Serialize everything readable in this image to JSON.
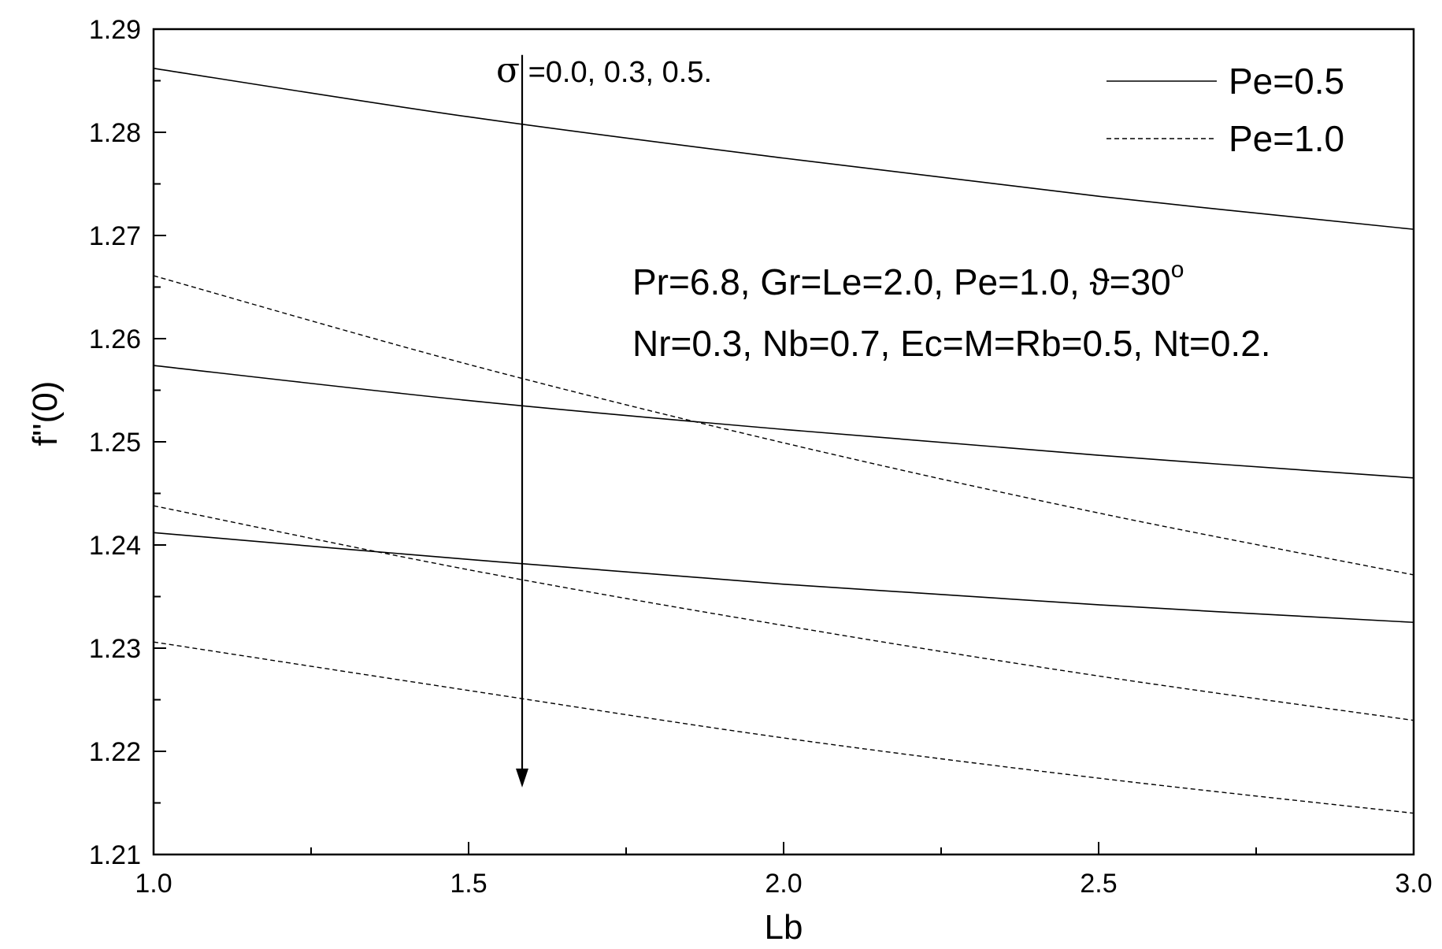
{
  "chart_data": {
    "type": "line",
    "xlabel": "Lb",
    "ylabel": "f''(0)",
    "xlim": [
      1.0,
      3.0
    ],
    "ylim": [
      1.21,
      1.29
    ],
    "x_ticks": [
      "1.0",
      "1.5",
      "2.0",
      "2.5",
      "3.0"
    ],
    "y_ticks": [
      "1.21",
      "1.22",
      "1.23",
      "1.24",
      "1.25",
      "1.26",
      "1.27",
      "1.28",
      "1.29"
    ],
    "legend": {
      "placement": "top-right",
      "entries": [
        {
          "label": "Pe=0.5",
          "style": "solid"
        },
        {
          "label": "Pe=1.0",
          "style": "dashed"
        }
      ]
    },
    "annotations": {
      "sigma_symbol": "σ",
      "sigma_values": " =0.0, 0.3, 0.5.",
      "params_line1": "Pr=6.8, Gr=Le=2.0, Pe=1.0, ϑ=30",
      "params_line1_sup": "o",
      "params_line2": "Nr=0.3, Nb=0.7, Ec=M=Rb=0.5, Nt=0.2."
    },
    "arrow": {
      "x": 1.585,
      "y_from": 1.2875,
      "y_to": 1.2165
    },
    "series": [
      {
        "style": "solid",
        "x": [
          1.0,
          1.5,
          2.0,
          2.5,
          3.0
        ],
        "y": [
          1.2862,
          1.2815,
          1.2775,
          1.2738,
          1.2706
        ]
      },
      {
        "style": "solid",
        "x": [
          1.0,
          1.5,
          2.0,
          2.5,
          3.0
        ],
        "y": [
          1.2574,
          1.254,
          1.2512,
          1.2487,
          1.2465
        ]
      },
      {
        "style": "solid",
        "x": [
          1.0,
          1.5,
          2.0,
          2.5,
          3.0
        ],
        "y": [
          1.2412,
          1.2386,
          1.2362,
          1.2342,
          1.2325
        ]
      },
      {
        "style": "dashed",
        "x": [
          1.0,
          1.5,
          2.0,
          2.5,
          3.0
        ],
        "y": [
          1.2661,
          1.2575,
          1.2499,
          1.2431,
          1.2371
        ]
      },
      {
        "style": "dashed",
        "x": [
          1.0,
          1.5,
          2.0,
          2.5,
          3.0
        ],
        "y": [
          1.2438,
          1.2376,
          1.2322,
          1.2273,
          1.223
        ]
      },
      {
        "style": "dashed",
        "x": [
          1.0,
          1.5,
          2.0,
          2.5,
          3.0
        ],
        "y": [
          1.2306,
          1.2259,
          1.2213,
          1.2174,
          1.214
        ]
      }
    ]
  }
}
